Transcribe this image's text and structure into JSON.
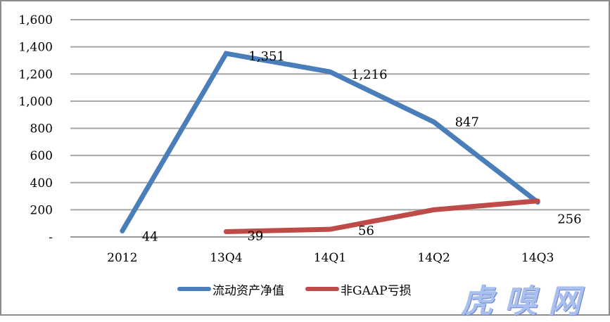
{
  "chart_data": {
    "type": "line",
    "title": "",
    "xlabel": "",
    "ylabel": "",
    "categories": [
      "2012",
      "13Q4",
      "14Q1",
      "14Q2",
      "14Q3"
    ],
    "series": [
      {
        "name": "流动资产净值",
        "color": "#4a7ebb",
        "values": [
          44,
          1351,
          1216,
          847,
          256
        ],
        "labels": [
          "44",
          "1,351",
          "1,216",
          "847",
          "256"
        ]
      },
      {
        "name": "非GAAP亏损",
        "color": "#be4b48",
        "values": [
          null,
          39,
          56,
          200,
          265
        ],
        "labels": [
          "",
          "39",
          "56",
          "",
          ""
        ]
      }
    ],
    "ylim": [
      0,
      1600
    ],
    "yticks": [
      "-",
      "200",
      "400",
      "600",
      "800",
      "1,000",
      "1,200",
      "1,400",
      "1,600"
    ],
    "grid": true,
    "legend_position": "bottom"
  },
  "legend": {
    "items": [
      {
        "label": "流动资产净值",
        "color": "#4a7ebb"
      },
      {
        "label": "非GAAP亏损",
        "color": "#be4b48"
      }
    ]
  },
  "watermark": {
    "text": "虎嗅网"
  }
}
